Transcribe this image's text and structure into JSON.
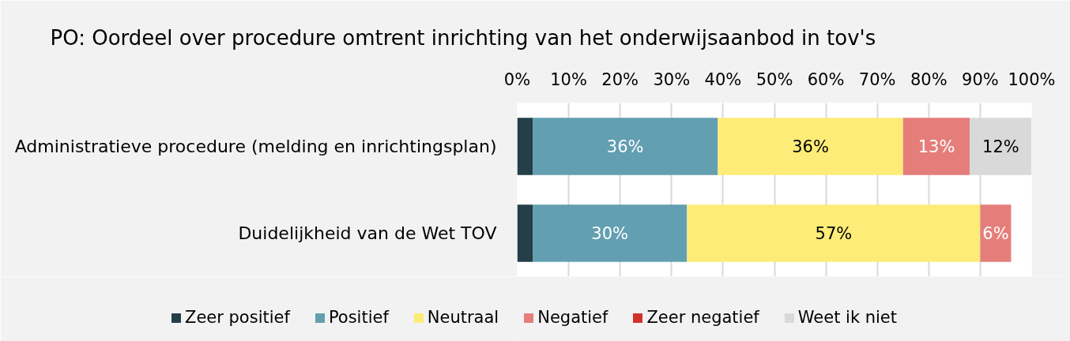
{
  "chart_data": {
    "type": "bar",
    "orientation": "horizontal",
    "stacked": true,
    "title": "PO: Oordeel over procedure omtrent inrichting van het onderwijsaanbod in tov's",
    "categories": [
      "Administratieve procedure (melding en inrichtingsplan)",
      "Duidelijkheid van de Wet TOV"
    ],
    "xlim": [
      0,
      100
    ],
    "xticks": [
      {
        "value": 0,
        "label": "0%"
      },
      {
        "value": 10,
        "label": "10%"
      },
      {
        "value": 20,
        "label": "20%"
      },
      {
        "value": 30,
        "label": "30%"
      },
      {
        "value": 40,
        "label": "40%"
      },
      {
        "value": 50,
        "label": "50%"
      },
      {
        "value": 60,
        "label": "60%"
      },
      {
        "value": 70,
        "label": "70%"
      },
      {
        "value": 80,
        "label": "80%"
      },
      {
        "value": 90,
        "label": "90%"
      },
      {
        "value": 100,
        "label": "100%"
      }
    ],
    "grid": "x",
    "legend": "bottom",
    "series": [
      {
        "name": "Zeer positief",
        "color": "#243f47",
        "values": [
          3,
          3
        ],
        "value_labels": [
          null,
          null
        ]
      },
      {
        "name": "Positief",
        "color": "#629fb0",
        "values": [
          36,
          30
        ],
        "value_labels": [
          "36%",
          "30%"
        ]
      },
      {
        "name": "Neutraal",
        "color": "#fdec77",
        "values": [
          36,
          57
        ],
        "value_labels": [
          "36%",
          "57%"
        ]
      },
      {
        "name": "Negatief",
        "color": "#e57e7b",
        "values": [
          13,
          6
        ],
        "value_labels": [
          "13%",
          "6%"
        ]
      },
      {
        "name": "Zeer negatief",
        "color": "#d3302a",
        "values": [
          null,
          null
        ],
        "value_labels": [
          null,
          null
        ]
      },
      {
        "name": "Weet ik niet",
        "color": "#d9d9d9",
        "values": [
          12,
          null
        ],
        "value_labels": [
          "12%",
          null
        ]
      }
    ]
  }
}
